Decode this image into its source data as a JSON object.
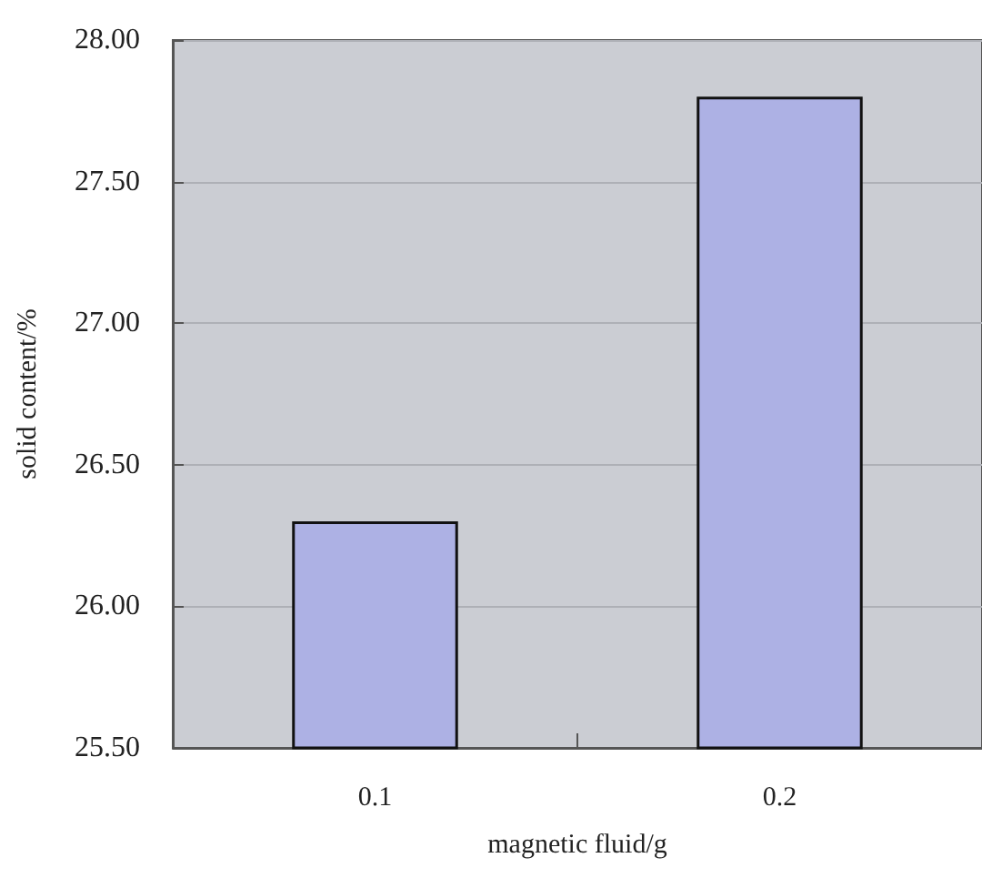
{
  "chart_data": {
    "type": "bar",
    "xlabel": "magnetic fluid/g",
    "ylabel": "solid content/%",
    "categories": [
      "0.1",
      "0.2"
    ],
    "values": [
      26.3,
      27.8
    ],
    "color": "#adb1e4",
    "ylim": [
      25.5,
      28
    ],
    "yticks": [
      {
        "value": 25.5,
        "label": "25.50"
      },
      {
        "value": 26,
        "label": "26.00"
      },
      {
        "value": 26.5,
        "label": "26.50"
      },
      {
        "value": 27,
        "label": "27.00"
      },
      {
        "value": 27.5,
        "label": "27.50"
      },
      {
        "value": 28,
        "label": "28.00"
      }
    ],
    "grid": "y"
  }
}
